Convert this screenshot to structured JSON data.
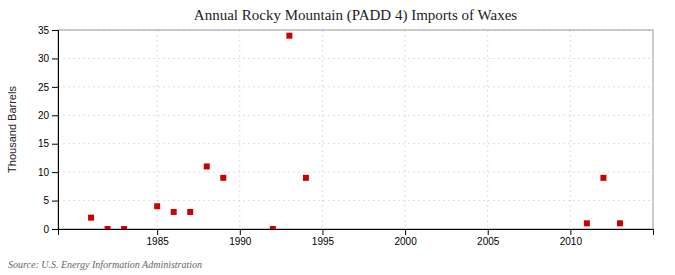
{
  "chart_data": {
    "type": "scatter",
    "title": "Annual Rocky Mountain (PADD 4) Imports of Waxes",
    "ylabel": "Thousand Barrels",
    "source": "Source: U.S. Energy Information Administration",
    "x": [
      1981,
      1982,
      1983,
      1985,
      1986,
      1987,
      1988,
      1989,
      1992,
      1993,
      1994,
      2011,
      2012,
      2013
    ],
    "values": [
      2,
      0,
      0,
      4,
      3,
      3,
      11,
      9,
      0,
      34,
      9,
      1,
      9,
      1
    ],
    "color": "#cc0000",
    "marker": "square",
    "xlim": [
      1979,
      2015
    ],
    "xticks": [
      1985,
      1990,
      1995,
      2000,
      2005,
      2010
    ],
    "ylim": [
      0,
      35
    ],
    "yticks": [
      0,
      5,
      10,
      15,
      20,
      25,
      30,
      35
    ],
    "grid": true
  }
}
